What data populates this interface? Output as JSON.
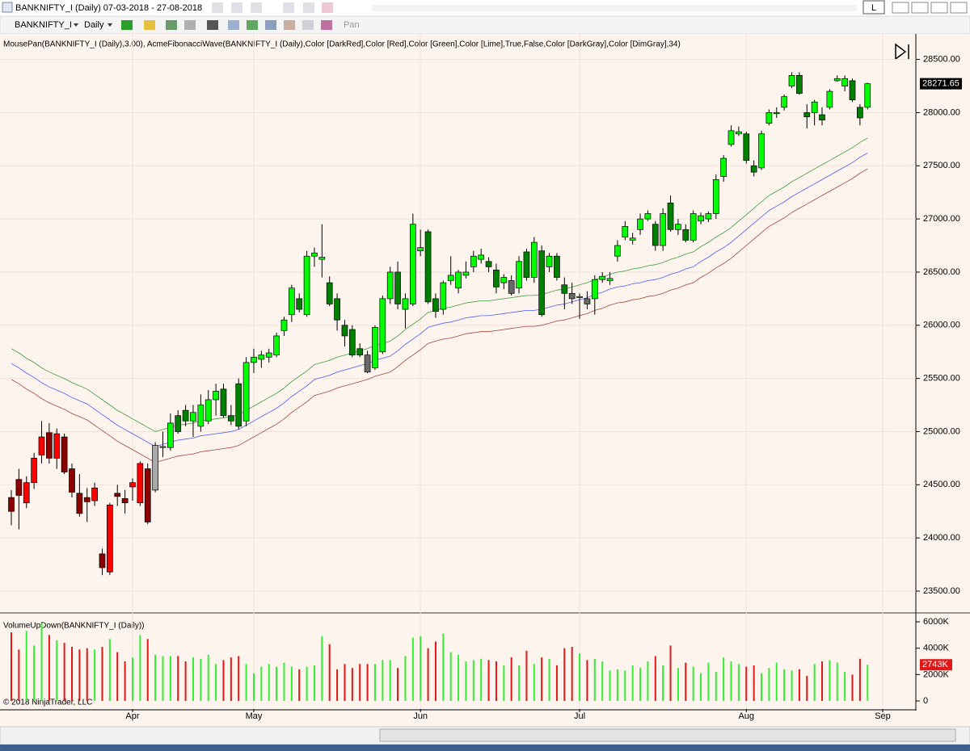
{
  "window": {
    "title": "BANKNIFTY_I (Daily)  07-03-2018 - 27-08-2018",
    "button": "L"
  },
  "toolbar": {
    "instrument": "BANKNIFTY_I",
    "interval": "Daily",
    "pan": "Pan"
  },
  "chart_data": {
    "type": "candlestick",
    "indicator_label": "MousePan(BANKNIFTY_I (Daily),3.00), AcmeFibonacciWave(BANKNIFTY_I (Daily),Color [DarkRed],Color [Red],Color [Green],Color [Lime],True,False,Color [DarkGray],Color [DimGray],34)",
    "copyright": "© 2018 NinjaTrader, LLC",
    "categories": [
      null,
      null,
      null,
      null,
      null,
      null,
      null,
      null,
      null,
      null,
      null,
      null,
      null,
      null,
      null,
      null,
      "Apr",
      null,
      null,
      null,
      null,
      null,
      null,
      null,
      null,
      null,
      null,
      null,
      null,
      null,
      null,
      null,
      "May",
      null,
      null,
      null,
      null,
      null,
      null,
      null,
      null,
      null,
      null,
      null,
      null,
      null,
      null,
      null,
      null,
      null,
      null,
      null,
      null,
      null,
      "Jun",
      null,
      null,
      null,
      null,
      null,
      null,
      null,
      null,
      null,
      null,
      null,
      null,
      null,
      null,
      null,
      null,
      null,
      null,
      null,
      null,
      "Jul",
      null,
      null,
      null,
      null,
      null,
      null,
      null,
      null,
      null,
      null,
      null,
      null,
      null,
      null,
      null,
      null,
      null,
      null,
      null,
      null,
      null,
      "Aug",
      null,
      null,
      null,
      null,
      null,
      null,
      null,
      null,
      null,
      null,
      null,
      null,
      null,
      null,
      null,
      null,
      null,
      "Sep"
    ],
    "open": [
      24380,
      24550,
      24330,
      24520,
      24780,
      24990,
      24750,
      24950,
      24650,
      24420,
      24380,
      24350,
      23850,
      23680,
      24420,
      24370,
      24480,
      24330,
      24650,
      24450,
      24850,
      24850,
      25150,
      25200,
      25100,
      25050,
      25100,
      25300,
      25400,
      25150,
      25450,
      25100,
      25650,
      25680,
      25700,
      25720,
      25950,
      26100,
      26250,
      26100,
      26650,
      26620,
      26400,
      26250,
      26000,
      25960,
      25780,
      25720,
      25600,
      25750,
      26250,
      26500,
      26150,
      26200,
      26700,
      26880,
      26250,
      26150,
      26420,
      26350,
      26470,
      26550,
      26620,
      26600,
      26520,
      26400,
      26420,
      26350,
      26690,
      26450,
      26700,
      26550,
      26650,
      26380,
      26300,
      26260,
      26250,
      26250,
      26430,
      26420,
      26650,
      26830,
      26800,
      26900,
      27000,
      26950,
      26750,
      27150,
      26900,
      26900,
      26800,
      26980,
      27000,
      27050,
      27400,
      27700,
      27800,
      27800,
      27500,
      27480,
      27900,
      27990,
      28050,
      28250,
      28350,
      28000,
      28000,
      27980,
      28050,
      28300,
      28250,
      28300,
      28050,
      28050,
      null,
      null
    ],
    "high": [
      24450,
      24650,
      24580,
      24800,
      25100,
      25080,
      25030,
      24980,
      24700,
      24600,
      24470,
      24520,
      23900,
      24330,
      24500,
      24450,
      24560,
      24720,
      24700,
      24900,
      25000,
      25170,
      25200,
      25250,
      25250,
      25350,
      25390,
      25450,
      25450,
      25250,
      25500,
      25700,
      25780,
      25760,
      25780,
      25930,
      26080,
      26380,
      26300,
      26700,
      26730,
      26950,
      26460,
      26300,
      26050,
      26000,
      25830,
      25760,
      26000,
      26280,
      26550,
      26600,
      26300,
      27050,
      26900,
      26900,
      26300,
      26420,
      26650,
      26520,
      26600,
      26700,
      26720,
      26640,
      26580,
      26480,
      26470,
      26650,
      26720,
      26830,
      26750,
      26680,
      26680,
      26450,
      26400,
      26300,
      26320,
      26470,
      26500,
      26500,
      26800,
      26980,
      26870,
      27050,
      27080,
      26980,
      27100,
      27220,
      27000,
      26950,
      27080,
      27060,
      27070,
      27420,
      27600,
      27880,
      27870,
      27820,
      27550,
      27830,
      28030,
      28050,
      28170,
      28380,
      28380,
      28080,
      28120,
      28050,
      28220,
      28350,
      28350,
      28320,
      28080,
      28280,
      null,
      null
    ],
    "low": [
      24120,
      24080,
      24280,
      24460,
      24700,
      24700,
      24650,
      24600,
      24380,
      24200,
      24150,
      24300,
      23650,
      23650,
      24300,
      24230,
      24350,
      24300,
      24130,
      24430,
      24760,
      24820,
      24980,
      25050,
      24950,
      25000,
      25070,
      25150,
      25130,
      25060,
      25020,
      25050,
      25550,
      25600,
      25650,
      25700,
      25900,
      26030,
      26120,
      26080,
      26550,
      26450,
      26180,
      25950,
      25800,
      25700,
      25700,
      25550,
      25580,
      25730,
      26200,
      26150,
      25970,
      26180,
      26650,
      26200,
      26070,
      26100,
      26380,
      26300,
      26440,
      26500,
      26580,
      26500,
      26300,
      26340,
      26280,
      26300,
      26420,
      26400,
      26080,
      26500,
      26420,
      26150,
      26200,
      26060,
      26150,
      26100,
      26400,
      26380,
      26600,
      26800,
      26760,
      26850,
      26980,
      26700,
      26700,
      26880,
      26850,
      26780,
      26780,
      26950,
      26970,
      27000,
      27350,
      27680,
      27780,
      27520,
      27400,
      27460,
      27880,
      27950,
      28020,
      28230,
      28170,
      27850,
      27880,
      27880,
      28030,
      28290,
      28200,
      28100,
      27880,
      28030,
      null,
      null
    ],
    "close": [
      24250,
      24400,
      24520,
      24750,
      24950,
      24750,
      24980,
      24620,
      24430,
      24230,
      24340,
      24470,
      23720,
      24310,
      24390,
      24330,
      24520,
      24700,
      24150,
      24870,
      24860,
      25080,
      25000,
      25100,
      25180,
      25250,
      25300,
      25380,
      25150,
      25100,
      25050,
      25650,
      25700,
      25720,
      25740,
      25900,
      26050,
      26350,
      26150,
      26650,
      26680,
      26640,
      26200,
      26050,
      25900,
      25720,
      25720,
      25560,
      25980,
      26250,
      26500,
      26200,
      26250,
      26950,
      26730,
      26220,
      26130,
      26400,
      26470,
      26500,
      26500,
      26650,
      26660,
      26550,
      26360,
      26450,
      26300,
      26600,
      26450,
      26780,
      26100,
      26650,
      26450,
      26300,
      26250,
      26270,
      26200,
      26430,
      26460,
      26440,
      26750,
      26930,
      26820,
      27000,
      27050,
      26750,
      27050,
      26900,
      26950,
      26800,
      27050,
      27030,
      27050,
      27370,
      27570,
      27830,
      27820,
      27550,
      27440,
      27800,
      28000,
      28000,
      28150,
      28350,
      28180,
      27960,
      28100,
      27930,
      28200,
      28320,
      28320,
      28120,
      27950,
      28271.65,
      null,
      null
    ],
    "candle_colors": [
      "darkred",
      "darkred",
      "red",
      "red",
      "red",
      "darkred",
      "red",
      "darkred",
      "darkred",
      "darkred",
      "darkred",
      "red",
      "darkred",
      "red",
      "darkred",
      "darkred",
      "red",
      "red",
      "darkred",
      "darkgray",
      "darkgray",
      "lime",
      "green",
      "green",
      "lime",
      "lime",
      "lime",
      "lime",
      "green",
      "green",
      "green",
      "lime",
      "lime",
      "lime",
      "lime",
      "lime",
      "lime",
      "lime",
      "green",
      "lime",
      "lime",
      "lime",
      "green",
      "green",
      "green",
      "green",
      "green",
      "dimgray",
      "lime",
      "lime",
      "lime",
      "green",
      "lime",
      "lime",
      "lime",
      "green",
      "green",
      "lime",
      "lime",
      "lime",
      "lime",
      "lime",
      "lime",
      "green",
      "green",
      "lime",
      "dimgray",
      "lime",
      "green",
      "lime",
      "green",
      "lime",
      "green",
      "green",
      "dimgray",
      "darkgray",
      "dimgray",
      "lime",
      "lime",
      "lime",
      "lime",
      "lime",
      "lime",
      "lime",
      "lime",
      "green",
      "lime",
      "green",
      "lime",
      "green",
      "lime",
      "lime",
      "lime",
      "lime",
      "lime",
      "lime",
      "lime",
      "green",
      "green",
      "lime",
      "lime",
      "lime",
      "lime",
      "lime",
      "green",
      "green",
      "lime",
      "green",
      "lime",
      "lime",
      "lime",
      "green",
      "green",
      "lime",
      null,
      null
    ],
    "series": [
      {
        "color": "#3f9a3f",
        "values": [
          25780,
          25740,
          25690,
          25650,
          25600,
          25560,
          25530,
          25500,
          25460,
          25430,
          25400,
          25350,
          25300,
          25250,
          25200,
          25160,
          25120,
          25080,
          25040,
          25000,
          25020,
          25040,
          25060,
          25070,
          25080,
          25100,
          25110,
          25120,
          25130,
          25140,
          25160,
          25200,
          25240,
          25280,
          25320,
          25360,
          25410,
          25470,
          25520,
          25570,
          25630,
          25650,
          25670,
          25700,
          25720,
          25740,
          25760,
          25780,
          25810,
          25830,
          25850,
          25900,
          25960,
          26010,
          26060,
          26120,
          26140,
          26160,
          26170,
          26190,
          26210,
          26220,
          26230,
          26230,
          26240,
          26250,
          26260,
          26270,
          26280,
          26280,
          26290,
          26310,
          26330,
          26340,
          26360,
          26380,
          26400,
          26430,
          26450,
          26480,
          26500,
          26510,
          26530,
          26540,
          26560,
          26570,
          26590,
          26620,
          26640,
          26670,
          26690,
          26740,
          26780,
          26830,
          26870,
          26920,
          26980,
          27040,
          27100,
          27160,
          27220,
          27260,
          27300,
          27350,
          27390,
          27430,
          27470,
          27510,
          27550,
          27590,
          27630,
          27670,
          27720,
          27760,
          null,
          null
        ]
      },
      {
        "color": "#4b5ef0",
        "values": [
          25640,
          25600,
          25550,
          25510,
          25460,
          25420,
          25390,
          25360,
          25320,
          25290,
          25260,
          25210,
          25160,
          25110,
          25060,
          25020,
          24980,
          24940,
          24900,
          24860,
          24880,
          24900,
          24920,
          24930,
          24940,
          24960,
          24970,
          24980,
          24990,
          25000,
          25020,
          25060,
          25100,
          25140,
          25180,
          25220,
          25270,
          25330,
          25380,
          25430,
          25490,
          25510,
          25530,
          25560,
          25580,
          25600,
          25620,
          25640,
          25670,
          25690,
          25710,
          25760,
          25820,
          25870,
          25920,
          25980,
          26000,
          26020,
          26030,
          26050,
          26070,
          26080,
          26090,
          26090,
          26100,
          26110,
          26120,
          26130,
          26140,
          26140,
          26150,
          26170,
          26190,
          26200,
          26220,
          26240,
          26260,
          26290,
          26310,
          26340,
          26360,
          26370,
          26390,
          26400,
          26420,
          26430,
          26450,
          26480,
          26500,
          26530,
          26550,
          26600,
          26640,
          26690,
          26730,
          26780,
          26840,
          26900,
          26960,
          27020,
          27080,
          27120,
          27160,
          27210,
          27250,
          27290,
          27330,
          27370,
          27410,
          27450,
          27490,
          27530,
          27580,
          27620,
          null,
          null
        ]
      },
      {
        "color": "#a0453a",
        "values": [
          25490,
          25450,
          25400,
          25360,
          25310,
          25270,
          25240,
          25210,
          25170,
          25140,
          25110,
          25060,
          25010,
          24960,
          24910,
          24870,
          24830,
          24790,
          24750,
          24710,
          24730,
          24750,
          24770,
          24780,
          24790,
          24810,
          24820,
          24830,
          24840,
          24850,
          24870,
          24910,
          24950,
          24990,
          25030,
          25070,
          25120,
          25180,
          25230,
          25280,
          25340,
          25360,
          25380,
          25410,
          25430,
          25450,
          25470,
          25490,
          25520,
          25540,
          25560,
          25610,
          25670,
          25720,
          25770,
          25830,
          25850,
          25870,
          25880,
          25900,
          25920,
          25930,
          25940,
          25940,
          25950,
          25960,
          25970,
          25980,
          25990,
          25990,
          26000,
          26020,
          26040,
          26050,
          26070,
          26090,
          26110,
          26140,
          26160,
          26190,
          26210,
          26220,
          26240,
          26250,
          26270,
          26280,
          26300,
          26330,
          26350,
          26380,
          26400,
          26450,
          26490,
          26540,
          26580,
          26630,
          26690,
          26750,
          26810,
          26870,
          26930,
          26970,
          27010,
          27060,
          27100,
          27140,
          27180,
          27220,
          27260,
          27300,
          27340,
          27380,
          27430,
          27470,
          null,
          null
        ]
      }
    ],
    "ylim": [
      23310,
      28740
    ],
    "yticks": [
      {
        "value": 23500,
        "label": "23500.00"
      },
      {
        "value": 24000,
        "label": "24000.00"
      },
      {
        "value": 24500,
        "label": "24500.00"
      },
      {
        "value": 25000,
        "label": "25000.00"
      },
      {
        "value": 25500,
        "label": "25500.00"
      },
      {
        "value": 26000,
        "label": "26000.00"
      },
      {
        "value": 26500,
        "label": "26500.00"
      },
      {
        "value": 27000,
        "label": "27000.00"
      },
      {
        "value": 27500,
        "label": "27500.00"
      },
      {
        "value": 28000,
        "label": "28000.00"
      },
      {
        "value": 28500,
        "label": "28500.00"
      }
    ],
    "grid": true,
    "volume": {
      "label": "VolumeUpDown(BANKNIFTY_I (Daily))",
      "up_color": "#33ee33",
      "down_color": "#e01818",
      "values": [
        5200,
        3900,
        5300,
        4200,
        5900,
        5000,
        4600,
        4400,
        4100,
        3900,
        4000,
        3900,
        4100,
        4700,
        3700,
        3000,
        3300,
        5000,
        4700,
        3500,
        3400,
        3400,
        3400,
        3000,
        3300,
        3200,
        3500,
        2800,
        3100,
        3300,
        3400,
        2800,
        2100,
        2600,
        2800,
        2600,
        2900,
        2600,
        2400,
        2600,
        2700,
        4900,
        4300,
        2400,
        2800,
        2500,
        2800,
        2800,
        2800,
        3100,
        3100,
        2500,
        3400,
        4800,
        4900,
        4000,
        4500,
        5100,
        3700,
        3500,
        3000,
        3100,
        3200,
        3100,
        3000,
        2700,
        3300,
        2700,
        3800,
        2800,
        3300,
        3200,
        2700,
        4000,
        4100,
        3600,
        3100,
        3200,
        3000,
        2300,
        2400,
        2300,
        2700,
        2500,
        3000,
        3400,
        2700,
        4200,
        2500,
        2900,
        2600,
        2100,
        2900,
        2200,
        3300,
        3000,
        2800,
        2600,
        2700,
        2100,
        2500,
        2900,
        2400,
        2300,
        2400,
        1900,
        2800,
        3000,
        3100,
        2900,
        2200,
        2000,
        3200,
        2743,
        null,
        null
      ],
      "marker_label": "2743K",
      "ylim": [
        -610,
        6490
      ],
      "yticks": [
        0,
        {
          "value": 2000,
          "label": "2000K"
        },
        {
          "value": 4000,
          "label": "4000K"
        },
        {
          "value": 6000,
          "label": "6000K"
        }
      ]
    }
  }
}
